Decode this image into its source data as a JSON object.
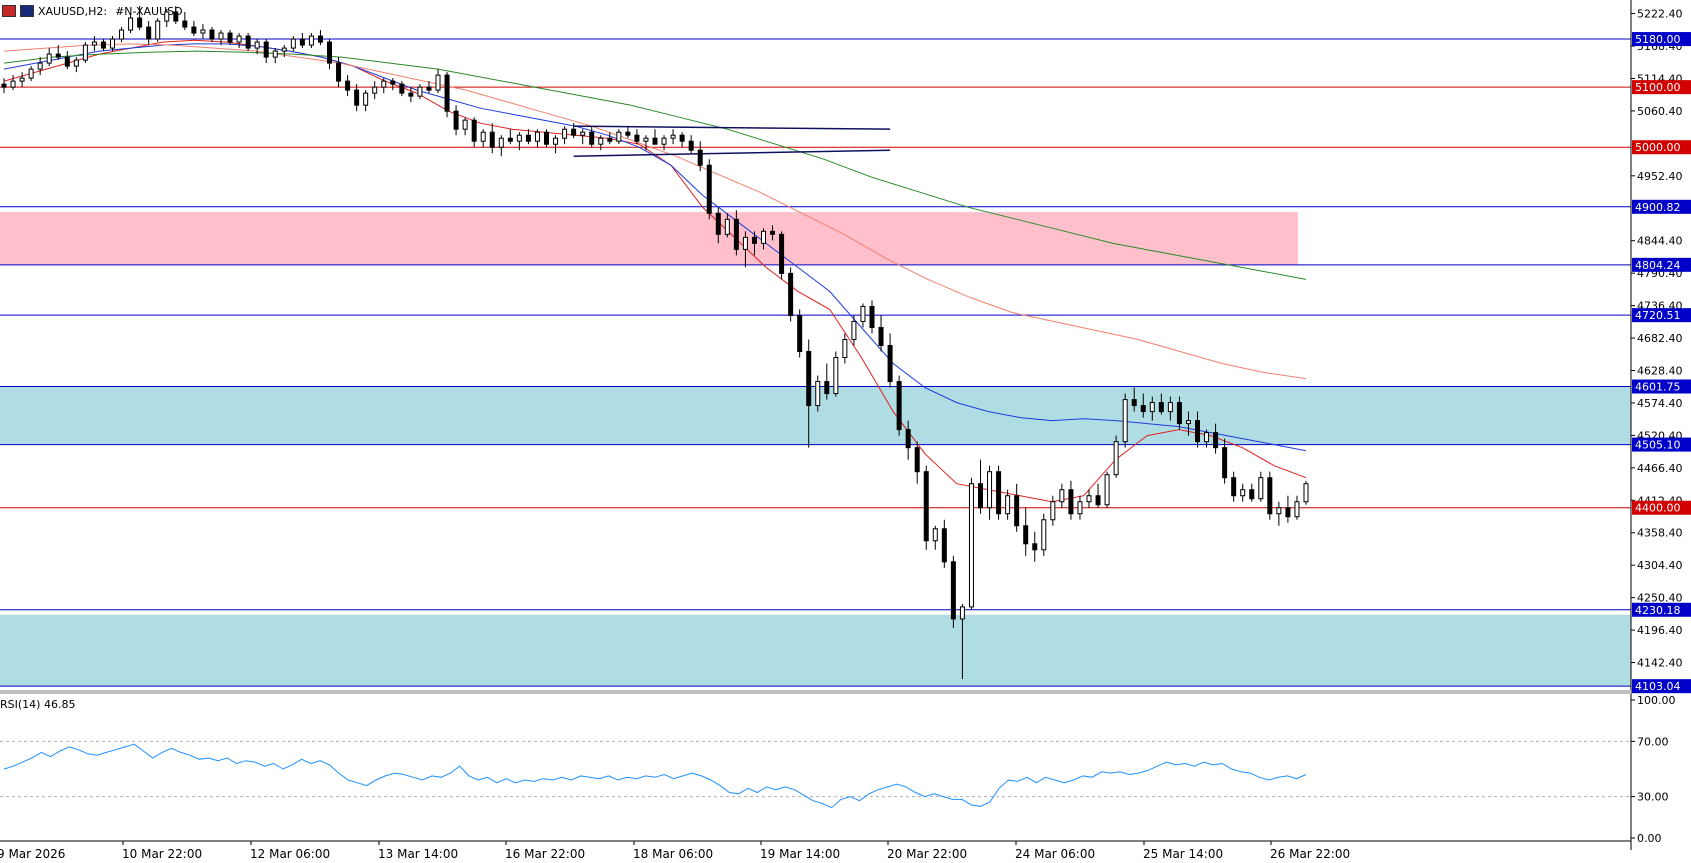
{
  "header": {
    "symbol_text": "XAUUSD,H2:",
    "desc_text": "#N-XAUUSD",
    "menu_icon": "menu-icon",
    "chart_icon": "bar-chart-icon"
  },
  "rsi": {
    "label": "RSI(14) 46.85",
    "levels": [
      "100.00",
      "70.00",
      "30.00",
      "0.00"
    ]
  },
  "colors": {
    "blue_line": "#0000c8",
    "red_line": "#d20000",
    "ema_red": "#e02020",
    "ema_blue": "#1e3cdc",
    "ema_salmon": "#f08070",
    "ema_green": "#2a8a2a",
    "pink_zone": "#ffc0cb",
    "cyan_zone": "#b0dde4",
    "rsi_line": "#1e90ff"
  },
  "chart_data": {
    "type": "candlestick",
    "x_ticks": [
      "9 Mar 2026",
      "10 Mar 22:00",
      "12 Mar 06:00",
      "13 Mar 14:00",
      "16 Mar 22:00",
      "18 Mar 06:00",
      "19 Mar 14:00",
      "20 Mar 22:00",
      "24 Mar 06:00",
      "25 Mar 14:00",
      "26 Mar 22:00"
    ],
    "y_ticks": [
      "5222.40",
      "5168.40",
      "5114.40",
      "5060.40",
      "4952.40",
      "4844.40",
      "4790.40",
      "4736.40",
      "4682.40",
      "4628.40",
      "4574.40",
      "4520.40",
      "4466.40",
      "4412.40",
      "4358.40",
      "4304.40",
      "4250.40",
      "4196.40",
      "4142.40"
    ],
    "ylim": [
      4100,
      5245
    ],
    "horizontal_levels": [
      {
        "value": 5180.0,
        "label": "5180.00",
        "color": "blue"
      },
      {
        "value": 5100.0,
        "label": "5100.00",
        "color": "red"
      },
      {
        "value": 5000.0,
        "label": "5000.00",
        "color": "red"
      },
      {
        "value": 4900.82,
        "label": "4900.82",
        "color": "blue"
      },
      {
        "value": 4804.24,
        "label": "4804.24",
        "color": "blue"
      },
      {
        "value": 4720.51,
        "label": "4720.51",
        "color": "blue"
      },
      {
        "value": 4601.75,
        "label": "4601.75",
        "color": "blue"
      },
      {
        "value": 4505.1,
        "label": "4505.10",
        "color": "blue"
      },
      {
        "value": 4400.0,
        "label": "4400.00",
        "color": "red"
      },
      {
        "value": 4230.18,
        "label": "4230.18",
        "color": "blue"
      },
      {
        "value": 4103.04,
        "label": "4103.04",
        "color": "blue"
      }
    ],
    "zones": [
      {
        "from": 4804.24,
        "to": 4892,
        "color": "pink",
        "extends_to_right_axis": false
      },
      {
        "from": 4505.1,
        "to": 4601.75,
        "color": "cyan",
        "extends_to_right_axis": true
      },
      {
        "from": 4103.04,
        "to": 4222,
        "color": "cyan",
        "extends_to_right_axis": true
      }
    ],
    "consolidation_channel": {
      "start_index": 63,
      "end_index": 98,
      "upper": [
        5035,
        5030
      ],
      "lower": [
        4985,
        4995
      ]
    },
    "ohlc_approx": [
      [
        5105,
        5115,
        5090,
        5100
      ],
      [
        5100,
        5120,
        5095,
        5110
      ],
      [
        5110,
        5125,
        5100,
        5115
      ],
      [
        5115,
        5135,
        5110,
        5130
      ],
      [
        5130,
        5150,
        5120,
        5140
      ],
      [
        5140,
        5165,
        5135,
        5155
      ],
      [
        5155,
        5170,
        5145,
        5150
      ],
      [
        5150,
        5160,
        5130,
        5135
      ],
      [
        5135,
        5150,
        5125,
        5145
      ],
      [
        5145,
        5175,
        5140,
        5170
      ],
      [
        5170,
        5185,
        5160,
        5175
      ],
      [
        5175,
        5180,
        5160,
        5165
      ],
      [
        5165,
        5185,
        5160,
        5180
      ],
      [
        5180,
        5200,
        5175,
        5195
      ],
      [
        5195,
        5220,
        5190,
        5215
      ],
      [
        5215,
        5235,
        5195,
        5200
      ],
      [
        5200,
        5210,
        5170,
        5180
      ],
      [
        5180,
        5215,
        5175,
        5210
      ],
      [
        5210,
        5230,
        5200,
        5225
      ],
      [
        5225,
        5235,
        5205,
        5210
      ],
      [
        5210,
        5225,
        5195,
        5200
      ],
      [
        5200,
        5210,
        5185,
        5190
      ],
      [
        5190,
        5205,
        5180,
        5195
      ],
      [
        5195,
        5200,
        5175,
        5180
      ],
      [
        5180,
        5195,
        5170,
        5190
      ],
      [
        5190,
        5195,
        5170,
        5175
      ],
      [
        5175,
        5190,
        5165,
        5185
      ],
      [
        5185,
        5190,
        5160,
        5165
      ],
      [
        5165,
        5180,
        5155,
        5175
      ],
      [
        5175,
        5180,
        5140,
        5150
      ],
      [
        5150,
        5165,
        5140,
        5160
      ],
      [
        5160,
        5170,
        5150,
        5165
      ],
      [
        5165,
        5185,
        5160,
        5180
      ],
      [
        5180,
        5190,
        5165,
        5170
      ],
      [
        5170,
        5190,
        5165,
        5185
      ],
      [
        5185,
        5195,
        5170,
        5175
      ],
      [
        5175,
        5180,
        5130,
        5140
      ],
      [
        5140,
        5150,
        5100,
        5110
      ],
      [
        5110,
        5120,
        5085,
        5095
      ],
      [
        5095,
        5105,
        5060,
        5070
      ],
      [
        5070,
        5095,
        5060,
        5090
      ],
      [
        5090,
        5110,
        5080,
        5100
      ],
      [
        5100,
        5115,
        5090,
        5110
      ],
      [
        5110,
        5115,
        5095,
        5105
      ],
      [
        5105,
        5110,
        5085,
        5090
      ],
      [
        5090,
        5100,
        5075,
        5085
      ],
      [
        5085,
        5105,
        5080,
        5100
      ],
      [
        5100,
        5110,
        5090,
        5095
      ],
      [
        5095,
        5130,
        5090,
        5120
      ],
      [
        5120,
        5125,
        5050,
        5060
      ],
      [
        5060,
        5070,
        5020,
        5030
      ],
      [
        5030,
        5050,
        5020,
        5045
      ],
      [
        5045,
        5050,
        5000,
        5010
      ],
      [
        5010,
        5030,
        5000,
        5025
      ],
      [
        5025,
        5040,
        4990,
        5000
      ],
      [
        5000,
        5020,
        4985,
        5015
      ],
      [
        5015,
        5030,
        5005,
        5010
      ],
      [
        5010,
        5025,
        4995,
        5020
      ],
      [
        5020,
        5030,
        5005,
        5010
      ],
      [
        5010,
        5030,
        5000,
        5025
      ],
      [
        5025,
        5030,
        5000,
        5005
      ],
      [
        5005,
        5020,
        4990,
        5015
      ],
      [
        5015,
        5035,
        5005,
        5030
      ],
      [
        5030,
        5040,
        5015,
        5020
      ],
      [
        5020,
        5030,
        5005,
        5025
      ],
      [
        5025,
        5035,
        5000,
        5005
      ],
      [
        5005,
        5020,
        4995,
        5015
      ],
      [
        5015,
        5025,
        5005,
        5010
      ],
      [
        5010,
        5030,
        5005,
        5025
      ],
      [
        5025,
        5035,
        5015,
        5020
      ],
      [
        5020,
        5030,
        5005,
        5010
      ],
      [
        5010,
        5020,
        4995,
        5015
      ],
      [
        5015,
        5030,
        5005,
        5005
      ],
      [
        5005,
        5020,
        4995,
        5015
      ],
      [
        5015,
        5030,
        5005,
        5020
      ],
      [
        5020,
        5025,
        5000,
        5010
      ],
      [
        5010,
        5020,
        4990,
        4995
      ],
      [
        4995,
        5010,
        4960,
        4970
      ],
      [
        4970,
        4980,
        4880,
        4890
      ],
      [
        4890,
        4900,
        4840,
        4855
      ],
      [
        4855,
        4890,
        4850,
        4880
      ],
      [
        4880,
        4895,
        4820,
        4830
      ],
      [
        4830,
        4860,
        4800,
        4850
      ],
      [
        4850,
        4860,
        4820,
        4840
      ],
      [
        4840,
        4865,
        4830,
        4860
      ],
      [
        4860,
        4870,
        4845,
        4855
      ],
      [
        4855,
        4860,
        4780,
        4790
      ],
      [
        4790,
        4800,
        4710,
        4720
      ],
      [
        4720,
        4730,
        4650,
        4660
      ],
      [
        4660,
        4680,
        4500,
        4570
      ],
      [
        4570,
        4620,
        4560,
        4610
      ],
      [
        4610,
        4640,
        4580,
        4590
      ],
      [
        4590,
        4660,
        4585,
        4650
      ],
      [
        4650,
        4690,
        4640,
        4680
      ],
      [
        4680,
        4720,
        4670,
        4710
      ],
      [
        4710,
        4740,
        4700,
        4735
      ],
      [
        4735,
        4745,
        4690,
        4700
      ],
      [
        4700,
        4720,
        4660,
        4670
      ],
      [
        4670,
        4690,
        4600,
        4610
      ],
      [
        4610,
        4620,
        4520,
        4530
      ],
      [
        4530,
        4545,
        4480,
        4500
      ],
      [
        4500,
        4510,
        4440,
        4460
      ],
      [
        4460,
        4470,
        4330,
        4345
      ],
      [
        4345,
        4370,
        4330,
        4365
      ],
      [
        4365,
        4380,
        4300,
        4310
      ],
      [
        4310,
        4320,
        4200,
        4215
      ],
      [
        4215,
        4240,
        4115,
        4235
      ],
      [
        4235,
        4450,
        4230,
        4440
      ],
      [
        4440,
        4480,
        4390,
        4400
      ],
      [
        4400,
        4470,
        4380,
        4460
      ],
      [
        4460,
        4470,
        4380,
        4390
      ],
      [
        4390,
        4430,
        4380,
        4420
      ],
      [
        4420,
        4440,
        4360,
        4370
      ],
      [
        4370,
        4400,
        4320,
        4340
      ],
      [
        4340,
        4360,
        4310,
        4330
      ],
      [
        4330,
        4390,
        4320,
        4380
      ],
      [
        4380,
        4420,
        4370,
        4410
      ],
      [
        4410,
        4440,
        4400,
        4430
      ],
      [
        4430,
        4445,
        4380,
        4390
      ],
      [
        4390,
        4420,
        4380,
        4410
      ],
      [
        4410,
        4430,
        4400,
        4420
      ],
      [
        4420,
        4440,
        4400,
        4405
      ],
      [
        4405,
        4460,
        4400,
        4455
      ],
      [
        4455,
        4520,
        4450,
        4510
      ],
      [
        4510,
        4590,
        4500,
        4580
      ],
      [
        4580,
        4600,
        4560,
        4570
      ],
      [
        4570,
        4590,
        4550,
        4560
      ],
      [
        4560,
        4585,
        4545,
        4575
      ],
      [
        4575,
        4590,
        4555,
        4560
      ],
      [
        4560,
        4585,
        4545,
        4575
      ],
      [
        4575,
        4585,
        4530,
        4540
      ],
      [
        4540,
        4560,
        4520,
        4545
      ],
      [
        4545,
        4560,
        4500,
        4510
      ],
      [
        4510,
        4530,
        4500,
        4525
      ],
      [
        4525,
        4540,
        4490,
        4500
      ],
      [
        4500,
        4515,
        4440,
        4450
      ],
      [
        4450,
        4460,
        4410,
        4420
      ],
      [
        4420,
        4440,
        4410,
        4430
      ],
      [
        4430,
        4440,
        4410,
        4415
      ],
      [
        4415,
        4460,
        4410,
        4450
      ],
      [
        4450,
        4460,
        4380,
        4390
      ],
      [
        4390,
        4410,
        4370,
        4400
      ],
      [
        4400,
        4420,
        4375,
        4385
      ],
      [
        4385,
        4420,
        4380,
        4410
      ],
      [
        4410,
        4445,
        4405,
        4440
      ]
    ],
    "rsi_approx": [
      50,
      52,
      55,
      58,
      62,
      59,
      63,
      66,
      64,
      61,
      60,
      62,
      64,
      66,
      68,
      63,
      58,
      62,
      65,
      62,
      60,
      57,
      58,
      56,
      58,
      54,
      56,
      55,
      52,
      54,
      50,
      53,
      57,
      54,
      56,
      53,
      47,
      42,
      40,
      38,
      42,
      45,
      47,
      46,
      44,
      42,
      45,
      44,
      47,
      52,
      45,
      42,
      44,
      40,
      43,
      40,
      42,
      41,
      43,
      42,
      44,
      42,
      45,
      44,
      43,
      45,
      42,
      44,
      43,
      45,
      44,
      46,
      43,
      45,
      47,
      45,
      42,
      38,
      33,
      32,
      36,
      33,
      37,
      35,
      37,
      35,
      31,
      27,
      25,
      22,
      28,
      30,
      27,
      32,
      35,
      37,
      39,
      37,
      33,
      30,
      32,
      30,
      28,
      28,
      24,
      23,
      26,
      36,
      42,
      41,
      44,
      40,
      44,
      42,
      40,
      42,
      45,
      44,
      48,
      47,
      48,
      46,
      47,
      49,
      52,
      55,
      53,
      54,
      52,
      55,
      53,
      54,
      50,
      48,
      47,
      44,
      42,
      44,
      45,
      43,
      46
    ],
    "ema_lines": [
      {
        "name": "EMA red",
        "color": "red",
        "values": [
          5110,
          5125,
          5140,
          5155,
          5165,
          5175,
          5178,
          5175,
          5168,
          5160,
          5150,
          5135,
          5110,
          5090,
          5060,
          5040,
          5030,
          5025,
          5020,
          5015,
          5005,
          4970,
          4900,
          4850,
          4800,
          4760,
          4730,
          4650,
          4560,
          4490,
          4440,
          4430,
          4420,
          4410,
          4420,
          4480,
          4520,
          4530,
          4520,
          4500,
          4470,
          4450
        ]
      },
      {
        "name": "EMA blue",
        "color": "blue",
        "values": [
          5130,
          5140,
          5150,
          5160,
          5165,
          5170,
          5172,
          5172,
          5168,
          5160,
          5150,
          5135,
          5115,
          5095,
          5080,
          5065,
          5055,
          5045,
          5035,
          5020,
          5000,
          4970,
          4920,
          4880,
          4840,
          4800,
          4760,
          4700,
          4640,
          4600,
          4575,
          4560,
          4550,
          4545,
          4548,
          4545,
          4540,
          4535,
          4525,
          4515,
          4505,
          4495
        ]
      },
      {
        "name": "EMA salmon",
        "color": "salmon",
        "values": [
          5160,
          5165,
          5170,
          5172,
          5170,
          5165,
          5160,
          5150,
          5140,
          5125,
          5110,
          5095,
          5075,
          5055,
          5035,
          5010,
          4985,
          4955,
          4925,
          4890,
          4855,
          4815,
          4780,
          4750,
          4725,
          4710,
          4695,
          4680,
          4660,
          4640,
          4625,
          4615
        ]
      },
      {
        "name": "EMA green",
        "color": "green",
        "values": [
          5140,
          5150,
          5155,
          5158,
          5160,
          5158,
          5155,
          5150,
          5140,
          5130,
          5115,
          5100,
          5085,
          5070,
          5050,
          5030,
          5005,
          4980,
          4950,
          4925,
          4900,
          4880,
          4860,
          4840,
          4825,
          4810,
          4795,
          4780
        ]
      }
    ]
  }
}
